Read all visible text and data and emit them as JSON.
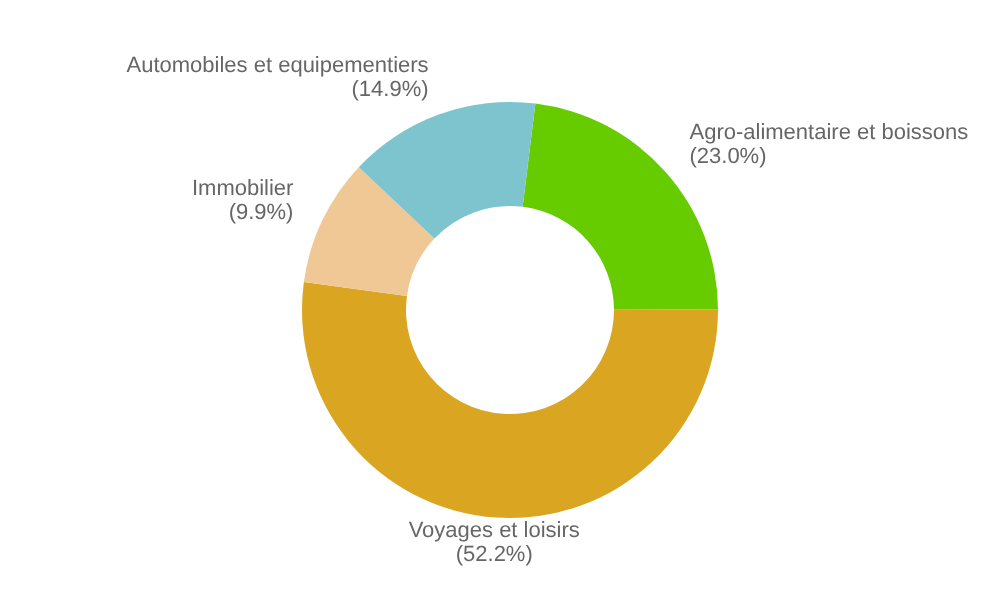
{
  "chart_data": {
    "type": "donut",
    "categories": [
      "Agro-alimentaire et boissons",
      "Voyages et loisirs",
      "Immobilier",
      "Automobiles et equipementiers"
    ],
    "values": [
      23.0,
      52.2,
      9.9,
      14.9
    ],
    "colors": [
      "#66cc00",
      "#daa520",
      "#f0c896",
      "#7ec4cf"
    ],
    "value_labels": [
      "(23.0%)",
      "(52.2%)",
      "(9.9%)",
      "(14.9%)"
    ],
    "legend": false
  }
}
